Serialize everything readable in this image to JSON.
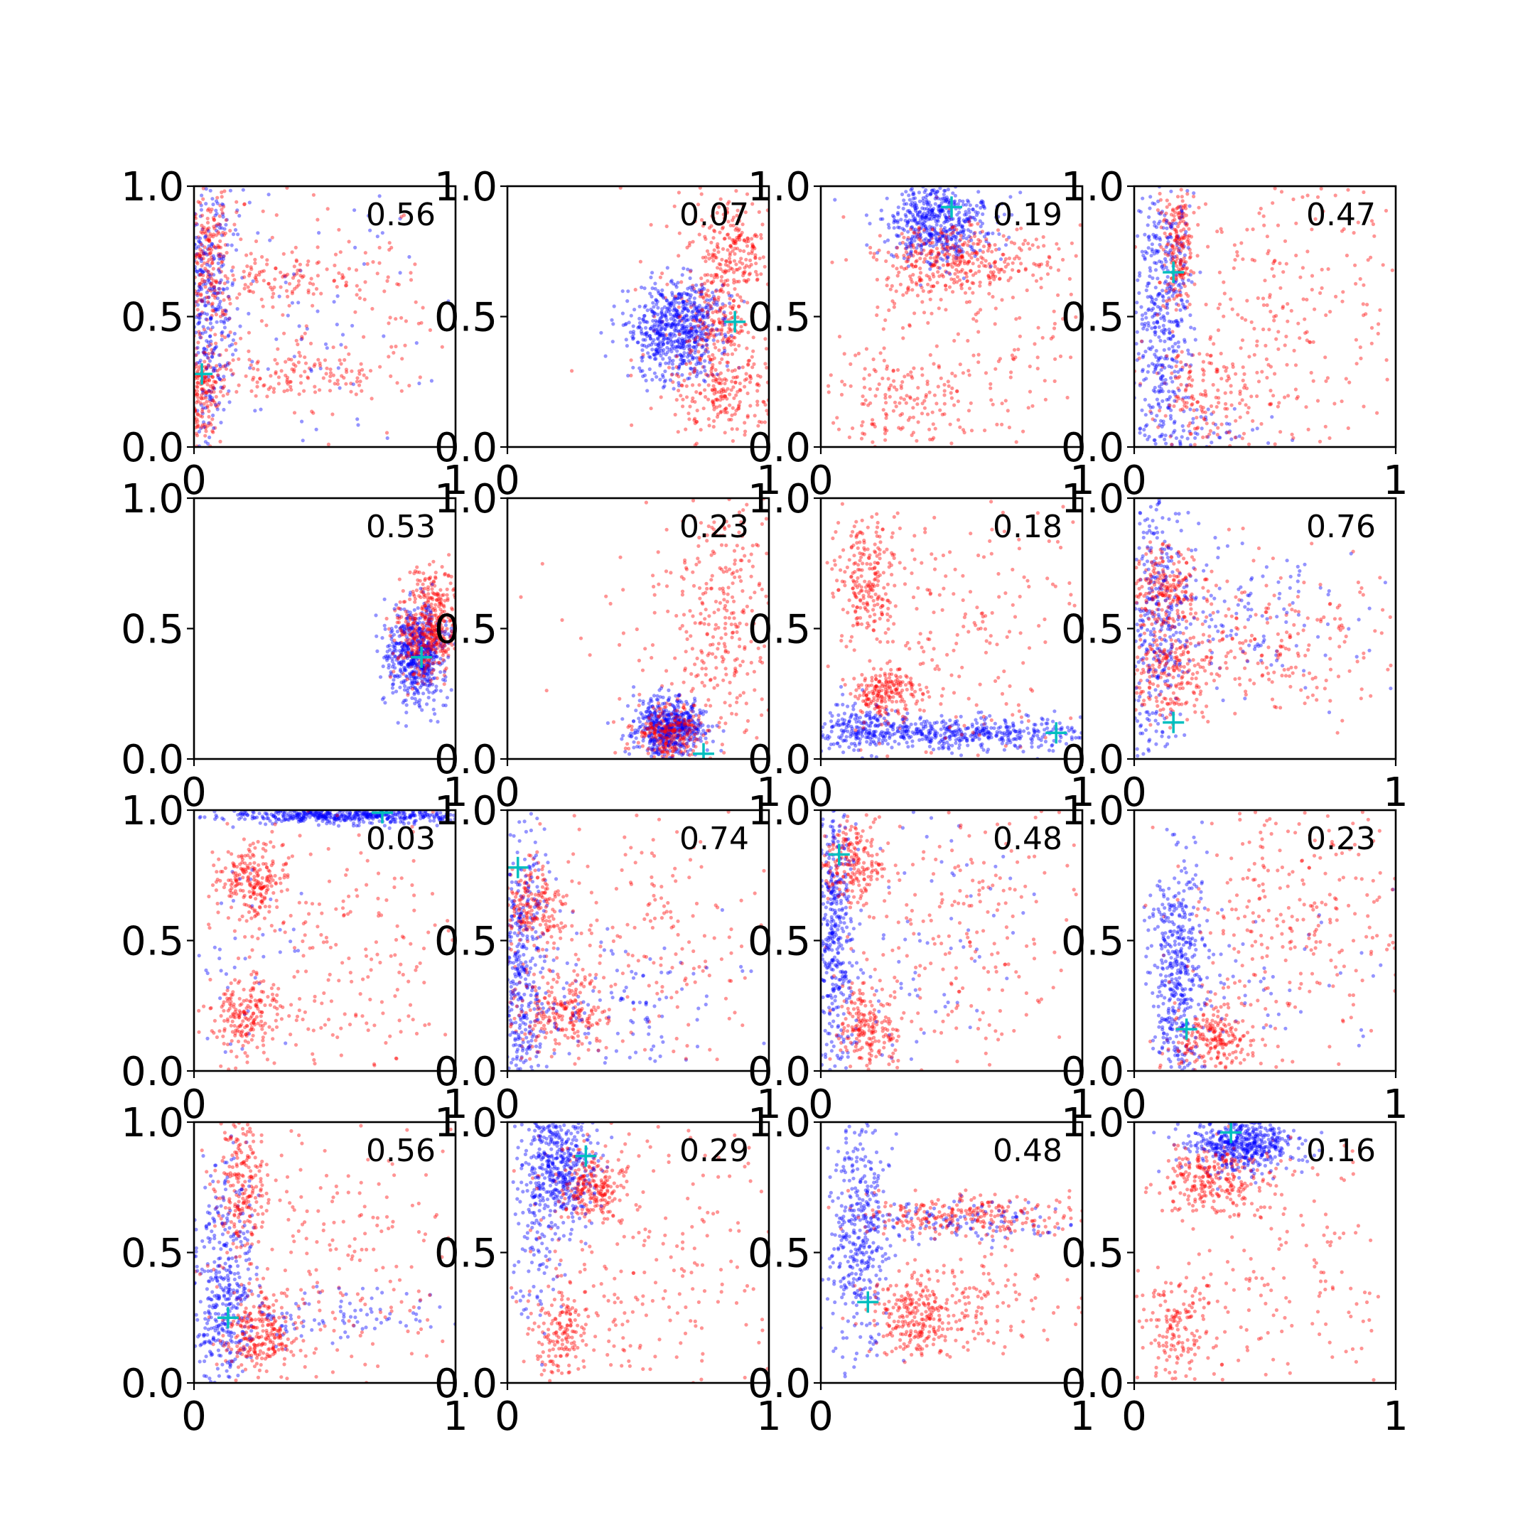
{
  "chart_data": {
    "type": "scatter",
    "layout": "4x4 grid of small multiples",
    "xlim": [
      0,
      1
    ],
    "ylim": [
      0,
      1
    ],
    "x_tick_labels": [
      "0",
      "1"
    ],
    "y_tick_labels": [
      "0.0",
      "0.5",
      "1.0"
    ],
    "grid": false,
    "legend": "none",
    "colors": {
      "series_a": "#0000ff",
      "series_b": "#ff0000",
      "marker": "#00bfbf"
    },
    "panels": [
      {
        "label": "0.56",
        "marker": [
          0.03,
          0.28
        ],
        "blue": [
          {
            "x": 0.04,
            "y": 0.55,
            "sx": 0.06,
            "sy": 0.3,
            "n": 420
          },
          {
            "x": 0.4,
            "y": 0.5,
            "sx": 0.3,
            "sy": 0.3,
            "n": 90
          }
        ],
        "red": [
          {
            "x": 0.05,
            "y": 0.7,
            "sx": 0.05,
            "sy": 0.15,
            "n": 250
          },
          {
            "x": 0.03,
            "y": 0.2,
            "sx": 0.03,
            "sy": 0.1,
            "n": 180
          },
          {
            "x": 0.35,
            "y": 0.65,
            "sx": 0.2,
            "sy": 0.05,
            "n": 120
          },
          {
            "x": 0.35,
            "y": 0.27,
            "sx": 0.2,
            "sy": 0.05,
            "n": 120
          },
          {
            "x": 0.5,
            "y": 0.5,
            "sx": 0.3,
            "sy": 0.3,
            "n": 140
          }
        ]
      },
      {
        "label": "0.07",
        "marker": [
          0.87,
          0.48
        ],
        "blue": [
          {
            "x": 0.65,
            "y": 0.45,
            "sx": 0.09,
            "sy": 0.09,
            "n": 650
          }
        ],
        "red": [
          {
            "x": 0.85,
            "y": 0.75,
            "sx": 0.08,
            "sy": 0.1,
            "n": 220
          },
          {
            "x": 0.83,
            "y": 0.22,
            "sx": 0.09,
            "sy": 0.1,
            "n": 220
          },
          {
            "x": 0.8,
            "y": 0.48,
            "sx": 0.06,
            "sy": 0.08,
            "n": 140
          },
          {
            "x": 0.75,
            "y": 0.5,
            "sx": 0.15,
            "sy": 0.3,
            "n": 80
          }
        ]
      },
      {
        "label": "0.19",
        "marker": [
          0.5,
          0.92
        ],
        "blue": [
          {
            "x": 0.45,
            "y": 0.86,
            "sx": 0.1,
            "sy": 0.08,
            "n": 520
          }
        ],
        "red": [
          {
            "x": 0.45,
            "y": 0.72,
            "sx": 0.1,
            "sy": 0.07,
            "n": 250
          },
          {
            "x": 0.7,
            "y": 0.72,
            "sx": 0.12,
            "sy": 0.05,
            "n": 110
          },
          {
            "x": 0.3,
            "y": 0.15,
            "sx": 0.15,
            "sy": 0.1,
            "n": 140
          },
          {
            "x": 0.55,
            "y": 0.35,
            "sx": 0.3,
            "sy": 0.25,
            "n": 200
          }
        ]
      },
      {
        "label": "0.47",
        "marker": [
          0.15,
          0.67
        ],
        "blue": [
          {
            "x": 0.11,
            "y": 0.5,
            "sx": 0.06,
            "sy": 0.3,
            "n": 480
          },
          {
            "x": 0.2,
            "y": 0.05,
            "sx": 0.15,
            "sy": 0.05,
            "n": 60
          }
        ],
        "red": [
          {
            "x": 0.17,
            "y": 0.78,
            "sx": 0.03,
            "sy": 0.12,
            "n": 200
          },
          {
            "x": 0.25,
            "y": 0.18,
            "sx": 0.1,
            "sy": 0.1,
            "n": 150
          },
          {
            "x": 0.6,
            "y": 0.55,
            "sx": 0.25,
            "sy": 0.3,
            "n": 260
          }
        ]
      },
      {
        "label": "0.53",
        "marker": [
          0.87,
          0.39
        ],
        "blue": [
          {
            "x": 0.85,
            "y": 0.4,
            "sx": 0.06,
            "sy": 0.1,
            "n": 550
          }
        ],
        "red": [
          {
            "x": 0.88,
            "y": 0.45,
            "sx": 0.05,
            "sy": 0.08,
            "n": 350
          },
          {
            "x": 0.92,
            "y": 0.6,
            "sx": 0.05,
            "sy": 0.08,
            "n": 150
          }
        ]
      },
      {
        "label": "0.23",
        "marker": [
          0.75,
          0.02
        ],
        "blue": [
          {
            "x": 0.62,
            "y": 0.12,
            "sx": 0.07,
            "sy": 0.06,
            "n": 520
          }
        ],
        "red": [
          {
            "x": 0.62,
            "y": 0.1,
            "sx": 0.06,
            "sy": 0.05,
            "n": 300
          },
          {
            "x": 0.82,
            "y": 0.55,
            "sx": 0.1,
            "sy": 0.25,
            "n": 280
          },
          {
            "x": 0.55,
            "y": 0.5,
            "sx": 0.2,
            "sy": 0.25,
            "n": 50
          }
        ]
      },
      {
        "label": "0.18",
        "marker": [
          0.9,
          0.1
        ],
        "blue": [
          {
            "x": 0.5,
            "y": 0.1,
            "sx": 0.3,
            "sy": 0.03,
            "n": 500
          },
          {
            "x": 0.15,
            "y": 0.12,
            "sx": 0.08,
            "sy": 0.05,
            "n": 150
          }
        ],
        "red": [
          {
            "x": 0.18,
            "y": 0.7,
            "sx": 0.06,
            "sy": 0.12,
            "n": 220
          },
          {
            "x": 0.25,
            "y": 0.25,
            "sx": 0.06,
            "sy": 0.05,
            "n": 200
          },
          {
            "x": 0.55,
            "y": 0.5,
            "sx": 0.25,
            "sy": 0.3,
            "n": 240
          }
        ]
      },
      {
        "label": "0.76",
        "marker": [
          0.15,
          0.14
        ],
        "blue": [
          {
            "x": 0.08,
            "y": 0.5,
            "sx": 0.06,
            "sy": 0.3,
            "n": 350
          },
          {
            "x": 0.4,
            "y": 0.55,
            "sx": 0.25,
            "sy": 0.15,
            "n": 150
          }
        ],
        "red": [
          {
            "x": 0.12,
            "y": 0.65,
            "sx": 0.08,
            "sy": 0.1,
            "n": 240
          },
          {
            "x": 0.15,
            "y": 0.33,
            "sx": 0.08,
            "sy": 0.08,
            "n": 200
          },
          {
            "x": 0.55,
            "y": 0.45,
            "sx": 0.25,
            "sy": 0.15,
            "n": 220
          }
        ]
      },
      {
        "label": "0.03",
        "marker": [
          0.72,
          0.99
        ],
        "blue": [
          {
            "x": 0.6,
            "y": 0.98,
            "sx": 0.25,
            "sy": 0.015,
            "n": 520
          },
          {
            "x": 0.2,
            "y": 0.5,
            "sx": 0.15,
            "sy": 0.3,
            "n": 50
          }
        ],
        "red": [
          {
            "x": 0.22,
            "y": 0.72,
            "sx": 0.07,
            "sy": 0.07,
            "n": 220
          },
          {
            "x": 0.2,
            "y": 0.2,
            "sx": 0.06,
            "sy": 0.08,
            "n": 180
          },
          {
            "x": 0.55,
            "y": 0.45,
            "sx": 0.25,
            "sy": 0.3,
            "n": 240
          }
        ]
      },
      {
        "label": "0.74",
        "marker": [
          0.04,
          0.78
        ],
        "blue": [
          {
            "x": 0.06,
            "y": 0.4,
            "sx": 0.05,
            "sy": 0.3,
            "n": 400
          },
          {
            "x": 0.4,
            "y": 0.25,
            "sx": 0.25,
            "sy": 0.15,
            "n": 150
          }
        ],
        "red": [
          {
            "x": 0.1,
            "y": 0.62,
            "sx": 0.06,
            "sy": 0.08,
            "n": 200
          },
          {
            "x": 0.2,
            "y": 0.22,
            "sx": 0.1,
            "sy": 0.07,
            "n": 220
          },
          {
            "x": 0.5,
            "y": 0.5,
            "sx": 0.25,
            "sy": 0.3,
            "n": 220
          }
        ]
      },
      {
        "label": "0.48",
        "marker": [
          0.07,
          0.83
        ],
        "blue": [
          {
            "x": 0.05,
            "y": 0.5,
            "sx": 0.04,
            "sy": 0.3,
            "n": 450
          },
          {
            "x": 0.35,
            "y": 0.5,
            "sx": 0.25,
            "sy": 0.3,
            "n": 100
          }
        ],
        "red": [
          {
            "x": 0.12,
            "y": 0.8,
            "sx": 0.06,
            "sy": 0.08,
            "n": 200
          },
          {
            "x": 0.18,
            "y": 0.18,
            "sx": 0.06,
            "sy": 0.08,
            "n": 200
          },
          {
            "x": 0.55,
            "y": 0.5,
            "sx": 0.25,
            "sy": 0.3,
            "n": 240
          }
        ]
      },
      {
        "label": "0.23",
        "marker": [
          0.2,
          0.16
        ],
        "blue": [
          {
            "x": 0.17,
            "y": 0.38,
            "sx": 0.05,
            "sy": 0.22,
            "n": 450
          },
          {
            "x": 0.5,
            "y": 0.35,
            "sx": 0.25,
            "sy": 0.15,
            "n": 60
          }
        ],
        "red": [
          {
            "x": 0.3,
            "y": 0.12,
            "sx": 0.08,
            "sy": 0.07,
            "n": 220
          },
          {
            "x": 0.6,
            "y": 0.6,
            "sx": 0.25,
            "sy": 0.25,
            "n": 300
          }
        ]
      },
      {
        "label": "0.56",
        "marker": [
          0.13,
          0.25
        ],
        "blue": [
          {
            "x": 0.12,
            "y": 0.35,
            "sx": 0.06,
            "sy": 0.25,
            "n": 400
          },
          {
            "x": 0.5,
            "y": 0.25,
            "sx": 0.3,
            "sy": 0.05,
            "n": 120
          }
        ],
        "red": [
          {
            "x": 0.18,
            "y": 0.75,
            "sx": 0.05,
            "sy": 0.15,
            "n": 220
          },
          {
            "x": 0.25,
            "y": 0.18,
            "sx": 0.07,
            "sy": 0.08,
            "n": 250
          },
          {
            "x": 0.55,
            "y": 0.5,
            "sx": 0.25,
            "sy": 0.3,
            "n": 220
          }
        ]
      },
      {
        "label": "0.29",
        "marker": [
          0.3,
          0.87
        ],
        "blue": [
          {
            "x": 0.2,
            "y": 0.82,
            "sx": 0.07,
            "sy": 0.12,
            "n": 450
          },
          {
            "x": 0.12,
            "y": 0.55,
            "sx": 0.05,
            "sy": 0.2,
            "n": 100
          }
        ],
        "red": [
          {
            "x": 0.32,
            "y": 0.75,
            "sx": 0.07,
            "sy": 0.07,
            "n": 220
          },
          {
            "x": 0.2,
            "y": 0.18,
            "sx": 0.05,
            "sy": 0.1,
            "n": 150
          },
          {
            "x": 0.55,
            "y": 0.45,
            "sx": 0.25,
            "sy": 0.3,
            "n": 250
          }
        ]
      },
      {
        "label": "0.48",
        "marker": [
          0.18,
          0.31
        ],
        "blue": [
          {
            "x": 0.15,
            "y": 0.55,
            "sx": 0.06,
            "sy": 0.25,
            "n": 400
          },
          {
            "x": 0.55,
            "y": 0.62,
            "sx": 0.2,
            "sy": 0.04,
            "n": 120
          }
        ],
        "red": [
          {
            "x": 0.55,
            "y": 0.64,
            "sx": 0.2,
            "sy": 0.04,
            "n": 260
          },
          {
            "x": 0.35,
            "y": 0.25,
            "sx": 0.08,
            "sy": 0.08,
            "n": 220
          },
          {
            "x": 0.6,
            "y": 0.3,
            "sx": 0.2,
            "sy": 0.1,
            "n": 150
          }
        ]
      },
      {
        "label": "0.16",
        "marker": [
          0.37,
          0.96
        ],
        "blue": [
          {
            "x": 0.42,
            "y": 0.92,
            "sx": 0.1,
            "sy": 0.05,
            "n": 500
          }
        ],
        "red": [
          {
            "x": 0.3,
            "y": 0.78,
            "sx": 0.1,
            "sy": 0.07,
            "n": 250
          },
          {
            "x": 0.15,
            "y": 0.22,
            "sx": 0.07,
            "sy": 0.1,
            "n": 150
          },
          {
            "x": 0.55,
            "y": 0.45,
            "sx": 0.25,
            "sy": 0.3,
            "n": 200
          }
        ]
      }
    ]
  }
}
